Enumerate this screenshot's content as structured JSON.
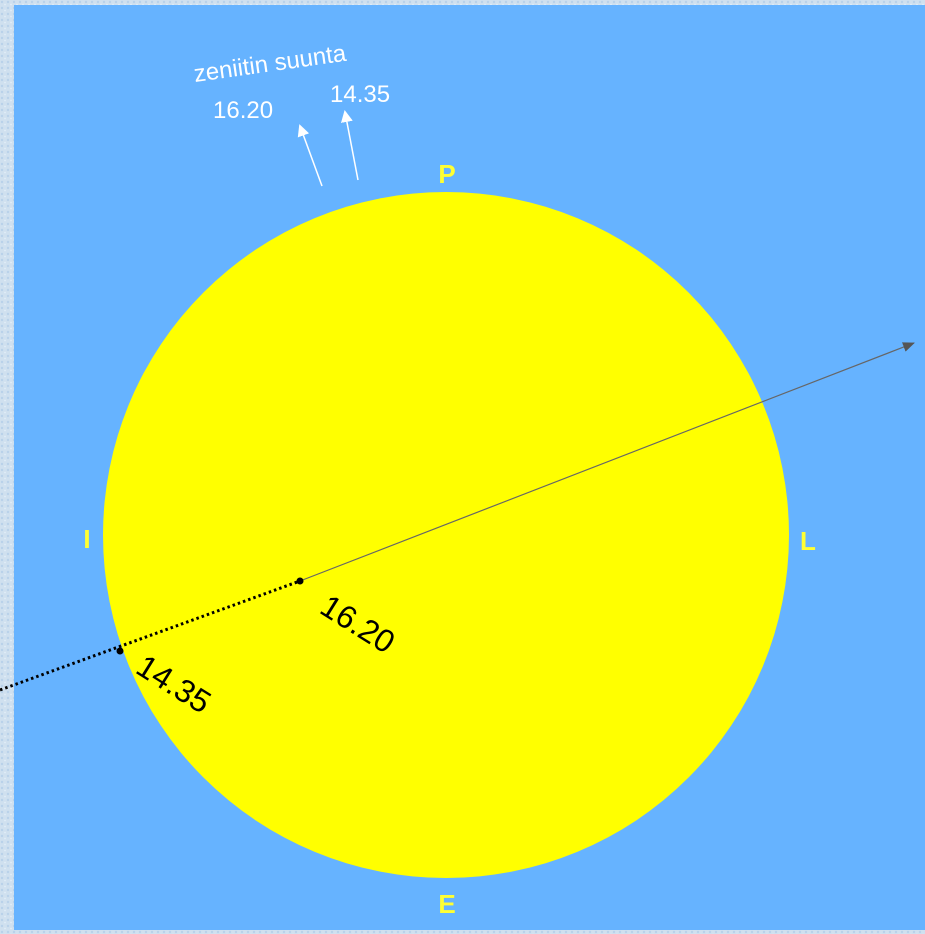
{
  "diagram": {
    "zenith": {
      "title": "zeniitin suunta",
      "time_a": "16.20",
      "time_b": "14.35"
    },
    "directions": {
      "top": "P",
      "left": "I",
      "right": "L",
      "bottom": "E"
    },
    "points": {
      "inner": "16.20",
      "edge": "14.35"
    }
  }
}
